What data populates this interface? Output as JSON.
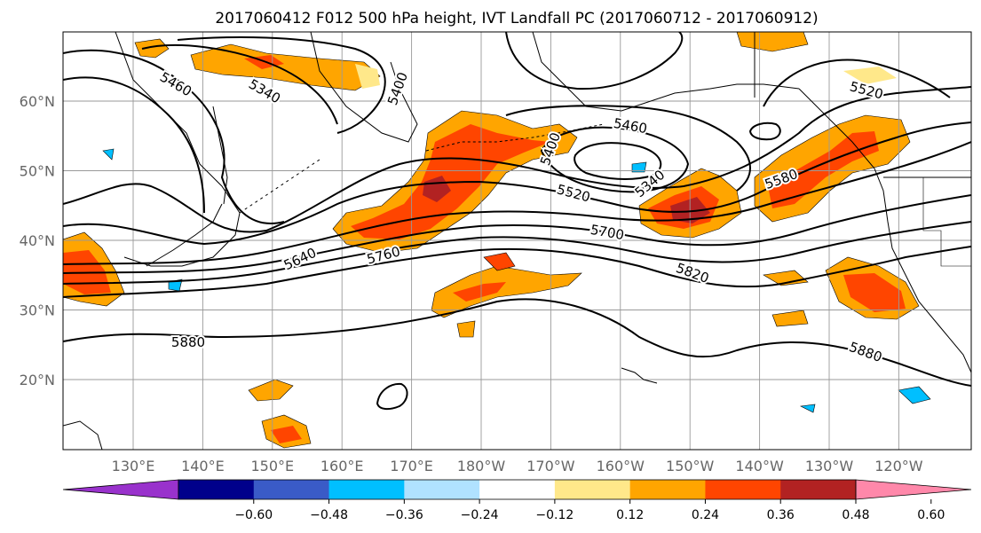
{
  "title": "2017060412 F012 500 hPa height, IVT Landfall PC (2017060712 - 2017060912)",
  "map": {
    "lat_labels": [
      "60°N",
      "50°N",
      "40°N",
      "30°N",
      "20°N"
    ],
    "lon_labels": [
      "130°E",
      "140°E",
      "150°E",
      "160°E",
      "170°E",
      "180°W",
      "170°W",
      "160°W",
      "150°W",
      "140°W",
      "130°W",
      "120°W"
    ],
    "lat_values": [
      60,
      50,
      40,
      30,
      20
    ],
    "lon_values": [
      130,
      140,
      150,
      160,
      170,
      180,
      -170,
      -160,
      -150,
      -140,
      -130,
      -120
    ],
    "grid": true,
    "contour_labels": [
      "5460",
      "5340",
      "5400",
      "5460",
      "5400",
      "5340",
      "5520",
      "5520",
      "5580",
      "5700",
      "5640",
      "5760",
      "5820",
      "5880",
      "5880"
    ],
    "contour_levels": [
      5340,
      5400,
      5460,
      5520,
      5580,
      5640,
      5700,
      5760,
      5820,
      5880
    ]
  },
  "colorbar": {
    "colors": [
      "#9932CC",
      "#00008B",
      "#3A5BC7",
      "#00BFFF",
      "#B0E2FF",
      "#FFFFFF",
      "#FFE88A",
      "#FFA500",
      "#FF4500",
      "#B22222",
      "#FF88AA"
    ],
    "ticks": [
      "−0.60",
      "−0.48",
      "−0.36",
      "−0.24",
      "−0.12",
      "0.12",
      "0.24",
      "0.36",
      "0.48",
      "0.60"
    ],
    "extend": "both"
  },
  "colors": {
    "fill_light": "#FFE88A",
    "fill_mid": "#FFA500",
    "fill_high": "#FF4500",
    "fill_max": "#B22222",
    "fill_neg": "#00BFFF",
    "fill_neg_light": "#B0E2FF"
  }
}
